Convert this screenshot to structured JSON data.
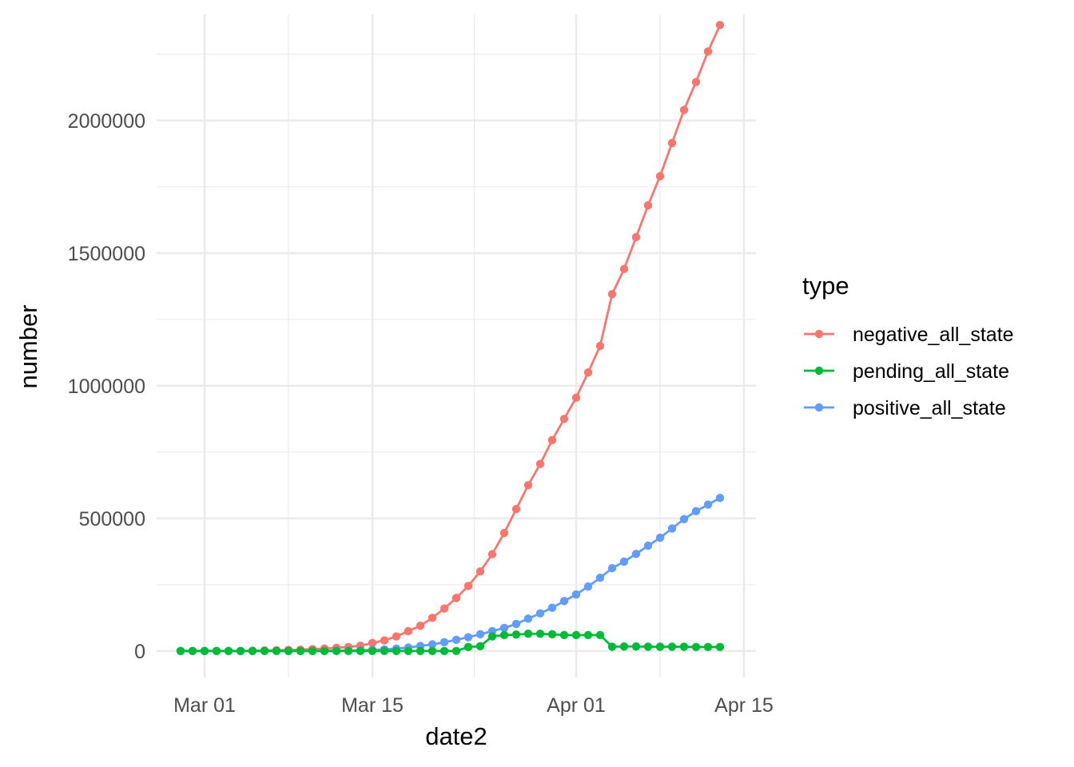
{
  "chart_data": {
    "type": "line",
    "xlabel": "date2",
    "ylabel": "number",
    "x_tick_labels": [
      "Mar 01",
      "Mar 15",
      "Apr 01",
      "Apr 15"
    ],
    "x_ticks": [
      "2020-03-01",
      "2020-03-15",
      "2020-04-01",
      "2020-04-15"
    ],
    "y_tick_labels": [
      "0",
      "500000",
      "1000000",
      "1500000",
      "2000000"
    ],
    "y_ticks": [
      0,
      500000,
      1000000,
      1500000,
      2000000
    ],
    "ylim": [
      -100000,
      2400000
    ],
    "xlim": [
      "2020-02-26",
      "2020-04-16"
    ],
    "grid": true,
    "legend": {
      "title": "type",
      "position": "right"
    },
    "x": [
      "2020-02-28",
      "2020-02-29",
      "2020-03-01",
      "2020-03-02",
      "2020-03-03",
      "2020-03-04",
      "2020-03-05",
      "2020-03-06",
      "2020-03-07",
      "2020-03-08",
      "2020-03-09",
      "2020-03-10",
      "2020-03-11",
      "2020-03-12",
      "2020-03-13",
      "2020-03-14",
      "2020-03-15",
      "2020-03-16",
      "2020-03-17",
      "2020-03-18",
      "2020-03-19",
      "2020-03-20",
      "2020-03-21",
      "2020-03-22",
      "2020-03-23",
      "2020-03-24",
      "2020-03-25",
      "2020-03-26",
      "2020-03-27",
      "2020-03-28",
      "2020-03-29",
      "2020-03-30",
      "2020-03-31",
      "2020-04-01",
      "2020-04-02",
      "2020-04-03",
      "2020-04-04",
      "2020-04-05",
      "2020-04-06",
      "2020-04-07",
      "2020-04-08",
      "2020-04-09",
      "2020-04-10",
      "2020-04-11",
      "2020-04-12",
      "2020-04-13"
    ],
    "series": [
      {
        "name": "negative_all_state",
        "color": "#F8766D",
        "values": [
          0,
          0,
          0,
          0,
          0,
          0,
          1000,
          2000,
          3000,
          4000,
          5000,
          7000,
          9000,
          12000,
          15000,
          20000,
          30000,
          40000,
          55000,
          75000,
          95000,
          125000,
          160000,
          200000,
          245000,
          300000,
          365000,
          445000,
          535000,
          625000,
          705000,
          795000,
          875000,
          955000,
          1050000,
          1150000,
          1345000,
          1440000,
          1560000,
          1680000,
          1790000,
          1915000,
          2040000,
          2145000,
          2260000,
          2360000
        ]
      },
      {
        "name": "pending_all_state",
        "color": "#00BA38",
        "values": [
          0,
          0,
          0,
          0,
          0,
          0,
          0,
          0,
          0,
          0,
          0,
          0,
          0,
          0,
          0,
          0,
          0,
          0,
          0,
          0,
          0,
          0,
          0,
          0,
          15000,
          18000,
          55000,
          60000,
          62000,
          65000,
          65000,
          63000,
          60000,
          60000,
          60000,
          60000,
          16000,
          17000,
          17000,
          16000,
          16000,
          16000,
          16000,
          15000,
          15000,
          15000
        ]
      },
      {
        "name": "positive_all_state",
        "color": "#619CFF",
        "values": [
          0,
          0,
          0,
          0,
          0,
          0,
          0,
          0,
          0,
          0,
          0,
          0,
          0,
          1000,
          2000,
          3000,
          4000,
          6000,
          9000,
          13000,
          19000,
          25000,
          33000,
          42000,
          52000,
          63000,
          75000,
          87000,
          102000,
          122000,
          142000,
          163000,
          188000,
          213000,
          243000,
          276000,
          312000,
          337000,
          366000,
          397000,
          427000,
          462000,
          497000,
          527000,
          552000,
          577000
        ]
      }
    ]
  }
}
